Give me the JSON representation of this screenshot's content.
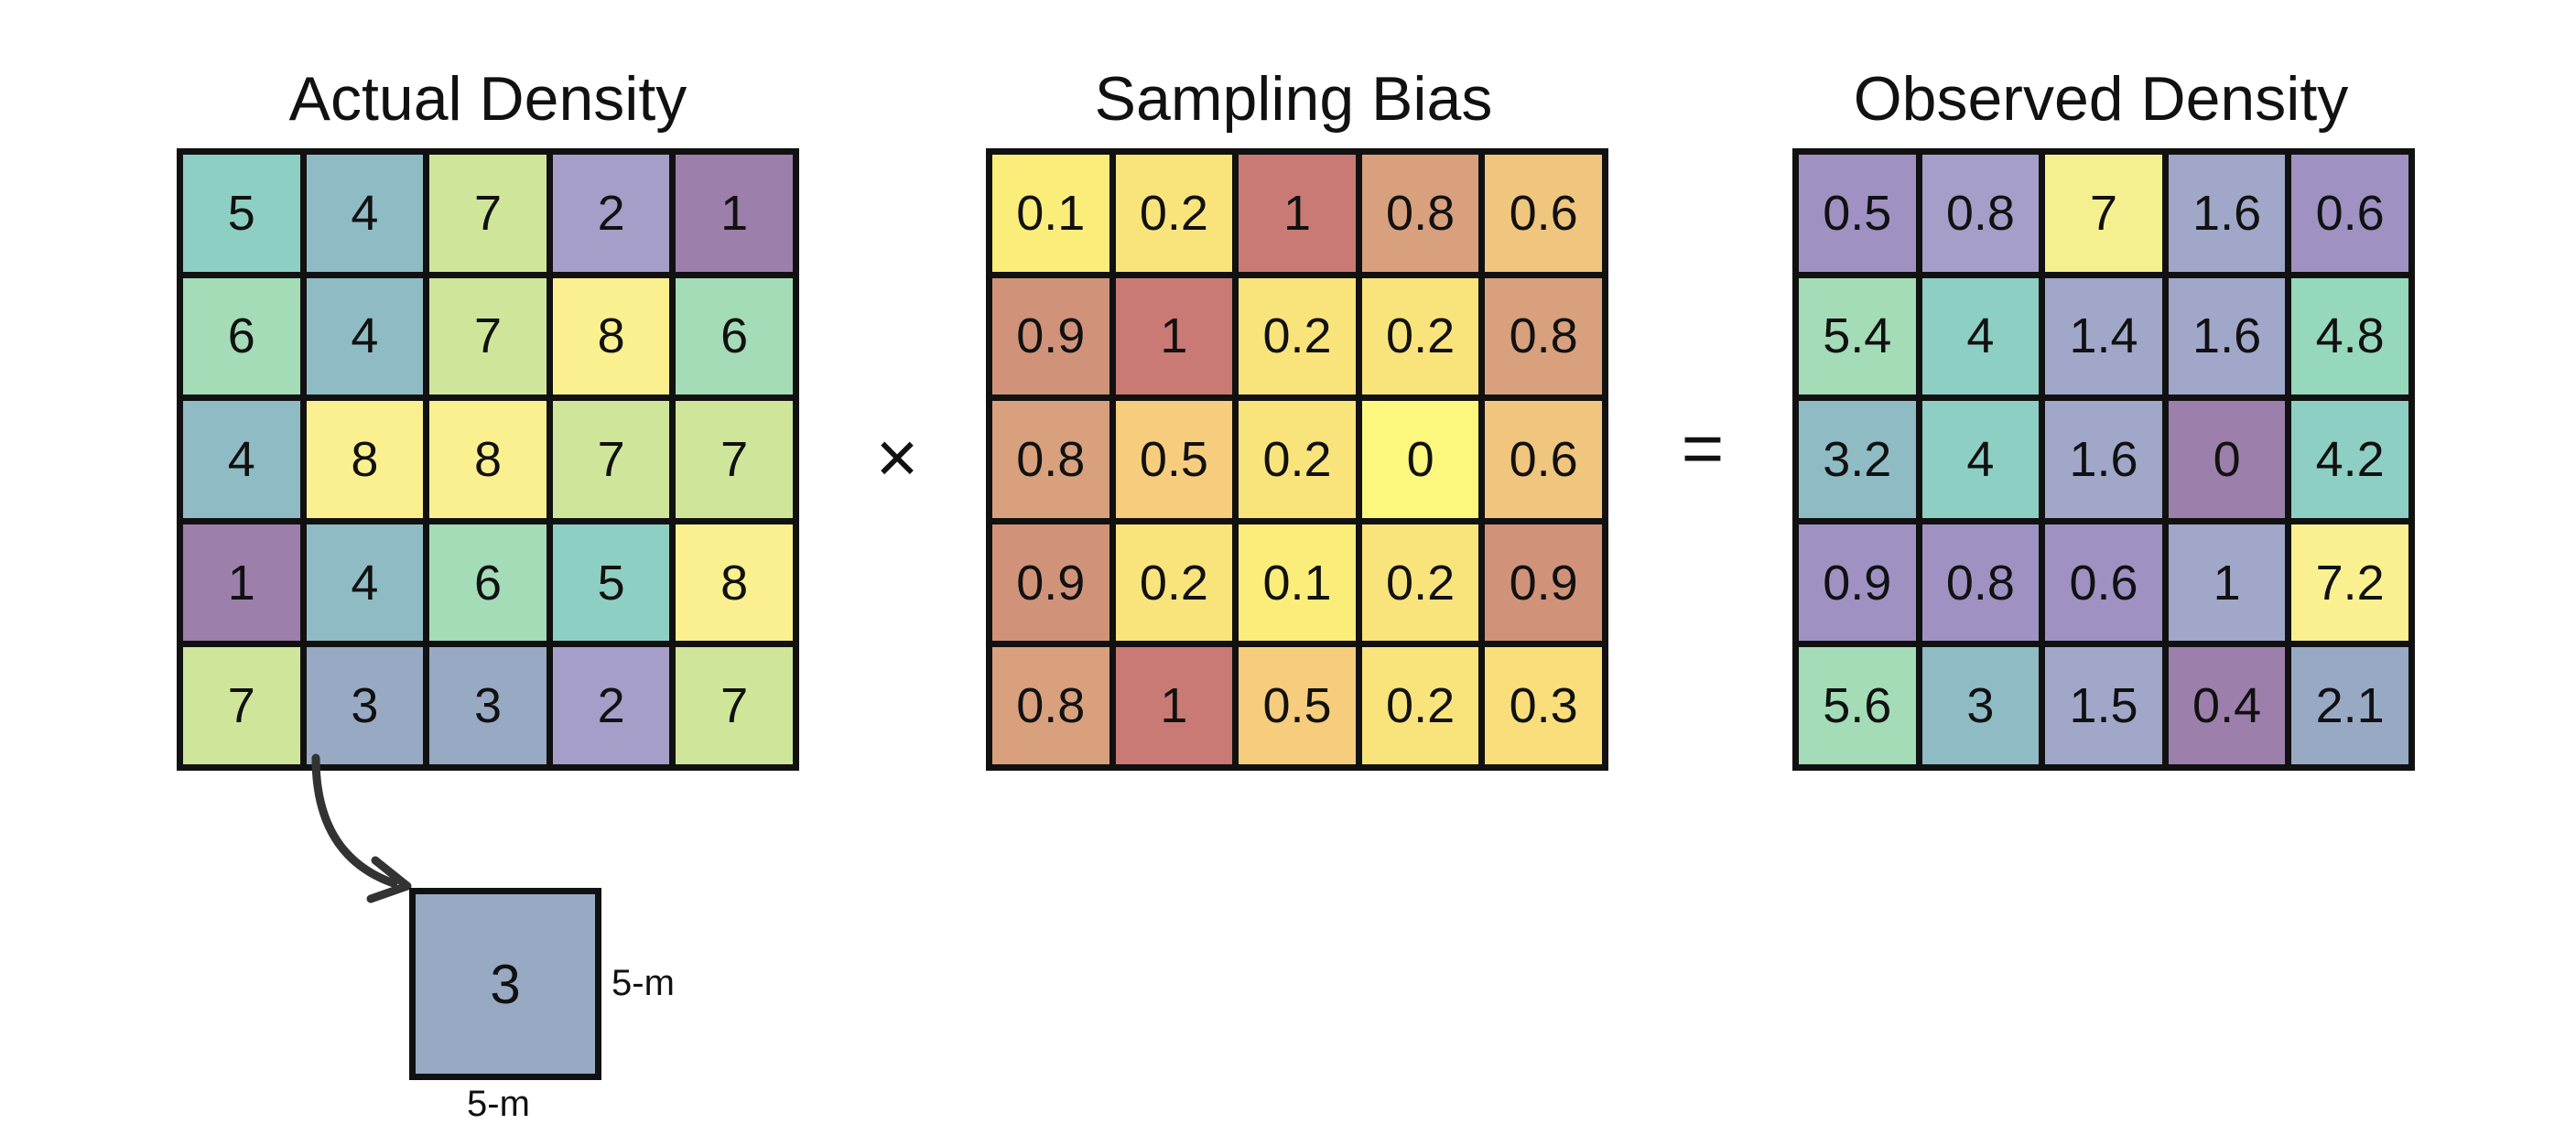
{
  "panels": [
    {
      "title": "Actual Density",
      "values": [
        [
          "5",
          "4",
          "7",
          "2",
          "1"
        ],
        [
          "6",
          "4",
          "7",
          "8",
          "6"
        ],
        [
          "4",
          "8",
          "8",
          "7",
          "7"
        ],
        [
          "1",
          "4",
          "6",
          "5",
          "8"
        ],
        [
          "7",
          "3",
          "3",
          "2",
          "7"
        ]
      ],
      "colors": [
        [
          "#8ecfc3",
          "#8fbcc4",
          "#cfe69a",
          "#a59ec9",
          "#9d7fab"
        ],
        [
          "#a3dcb7",
          "#8fbcc4",
          "#cfe69a",
          "#fbf08f",
          "#a3dcb7"
        ],
        [
          "#8fbcc4",
          "#fbf08f",
          "#fbf08f",
          "#cfe69a",
          "#cfe69a"
        ],
        [
          "#9d7fab",
          "#8fbcc4",
          "#a3dcb7",
          "#8ecfc3",
          "#fbf08f"
        ],
        [
          "#cfe69a",
          "#98a9c4",
          "#98a9c4",
          "#a59ec9",
          "#cfe69a"
        ]
      ]
    },
    {
      "title": "Sampling Bias",
      "values": [
        [
          "0.1",
          "0.2",
          "1",
          "0.8",
          "0.6"
        ],
        [
          "0.9",
          "1",
          "0.2",
          "0.2",
          "0.8"
        ],
        [
          "0.8",
          "0.5",
          "0.2",
          "0",
          "0.6"
        ],
        [
          "0.9",
          "0.2",
          "0.1",
          "0.2",
          "0.9"
        ],
        [
          "0.8",
          "1",
          "0.5",
          "0.2",
          "0.3"
        ]
      ],
      "colors": [
        [
          "#fbed7a",
          "#f9e47c",
          "#c97a75",
          "#d8a07d",
          "#f0c57e"
        ],
        [
          "#d09379",
          "#c97a75",
          "#f9e47c",
          "#f9e47c",
          "#d8a07d"
        ],
        [
          "#d8a07d",
          "#f6cd7d",
          "#f9e47c",
          "#fcf87e",
          "#f0c57e"
        ],
        [
          "#d09379",
          "#f9e47c",
          "#fbed7a",
          "#f9e47c",
          "#d09379"
        ],
        [
          "#d8a07d",
          "#c97a75",
          "#f6cd7d",
          "#f9e47c",
          "#f9de7b"
        ]
      ]
    },
    {
      "title": "Observed Density",
      "values": [
        [
          "0.5",
          "0.8",
          "7",
          "1.6",
          "0.6"
        ],
        [
          "5.4",
          "4",
          "1.4",
          "1.6",
          "4.8"
        ],
        [
          "3.2",
          "4",
          "1.6",
          "0",
          "4.2"
        ],
        [
          "0.9",
          "0.8",
          "0.6",
          "1",
          "7.2"
        ],
        [
          "5.6",
          "3",
          "1.5",
          "0.4",
          "2.1"
        ]
      ],
      "colors": [
        [
          "#a091c3",
          "#a59ec9",
          "#f4f08f",
          "#a0a7c9",
          "#a091c3"
        ],
        [
          "#a3dcb7",
          "#8ecfc3",
          "#a0a7c9",
          "#a0a7c9",
          "#96d8bb"
        ],
        [
          "#8fbcc4",
          "#8ecfc3",
          "#a0a7c9",
          "#9d7fab",
          "#8ecfc3"
        ],
        [
          "#a091c3",
          "#a091c3",
          "#a091c3",
          "#a0a7c9",
          "#fbf08f"
        ],
        [
          "#a3dcb7",
          "#8fbcc4",
          "#a0a7c9",
          "#9d7fab",
          "#98a9c4"
        ]
      ]
    }
  ],
  "operators": {
    "multiply": "×",
    "equals": "="
  },
  "inset": {
    "value": "3",
    "color": "#98a9c4",
    "side_label": "5-m",
    "bottom_label": "5-m"
  }
}
